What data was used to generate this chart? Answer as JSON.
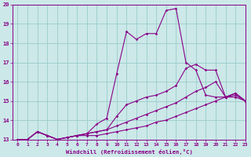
{
  "xlabel": "Windchill (Refroidissement éolien,°C)",
  "xlim": [
    -0.5,
    23
  ],
  "ylim": [
    13,
    20
  ],
  "yticks": [
    13,
    14,
    15,
    16,
    17,
    18,
    19,
    20
  ],
  "xticks": [
    0,
    1,
    2,
    3,
    4,
    5,
    6,
    7,
    8,
    9,
    10,
    11,
    12,
    13,
    14,
    15,
    16,
    17,
    18,
    19,
    20,
    21,
    22,
    23
  ],
  "bg_color": "#cce8e8",
  "line_color": "#880088",
  "grid_color": "#99cccc",
  "series": [
    [
      13.0,
      13.0,
      13.4,
      13.2,
      13.0,
      13.1,
      13.2,
      13.3,
      13.8,
      14.1,
      16.4,
      18.6,
      18.2,
      18.5,
      18.5,
      19.7,
      19.8,
      17.0,
      16.6,
      15.3,
      15.2,
      15.2,
      15.4,
      15.0
    ],
    [
      13.0,
      13.0,
      13.4,
      13.2,
      13.0,
      13.1,
      13.2,
      13.3,
      13.4,
      13.5,
      14.2,
      14.8,
      15.0,
      15.2,
      15.3,
      15.5,
      15.8,
      16.7,
      16.9,
      16.6,
      16.6,
      15.2,
      15.4,
      15.0
    ],
    [
      13.0,
      13.0,
      13.4,
      13.2,
      13.0,
      13.1,
      13.2,
      13.3,
      13.4,
      13.5,
      13.7,
      13.9,
      14.1,
      14.3,
      14.5,
      14.7,
      14.9,
      15.2,
      15.5,
      15.7,
      16.0,
      15.2,
      15.3,
      15.0
    ],
    [
      13.0,
      13.0,
      13.4,
      13.2,
      13.0,
      13.1,
      13.2,
      13.2,
      13.2,
      13.3,
      13.4,
      13.5,
      13.6,
      13.7,
      13.9,
      14.0,
      14.2,
      14.4,
      14.6,
      14.8,
      15.0,
      15.2,
      15.2,
      15.0
    ]
  ]
}
